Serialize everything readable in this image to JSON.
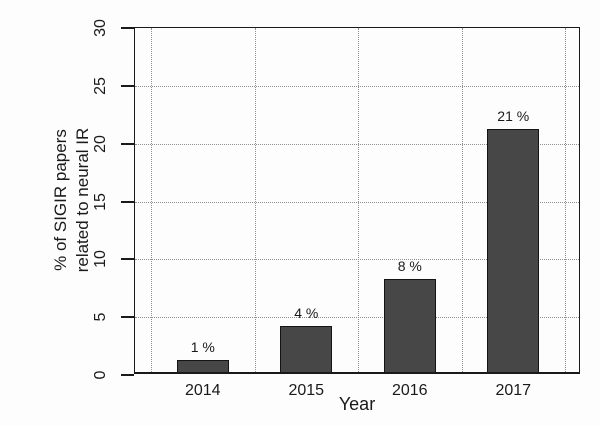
{
  "chart_data": {
    "type": "bar",
    "categories": [
      "2014",
      "2015",
      "2016",
      "2017"
    ],
    "values": [
      1,
      4,
      8,
      21
    ],
    "bar_labels": [
      "1 %",
      "4 %",
      "8 %",
      "21 %"
    ],
    "title": "",
    "xlabel": "Year",
    "ylabel": "% of SIGIR papers related to neural IR",
    "ylabel_lines": [
      "% of SIGIR papers",
      "related to neural IR"
    ],
    "ylim": [
      0,
      30
    ],
    "yticks": [
      0,
      5,
      10,
      15,
      20,
      25,
      30
    ],
    "ytick_labels": [
      "0",
      "5",
      "10",
      "15",
      "20",
      "25",
      "30"
    ],
    "grid": "dotted-both-axes",
    "legend_position": "none",
    "y_tick_label_rotation_deg": 90,
    "colors": {
      "bar_fill": "#474747",
      "bar_border": "#141414",
      "grid": "#909090",
      "axis": "#1a1a1a",
      "background": "#fdfdfd",
      "text": "#1a1a1a"
    }
  }
}
